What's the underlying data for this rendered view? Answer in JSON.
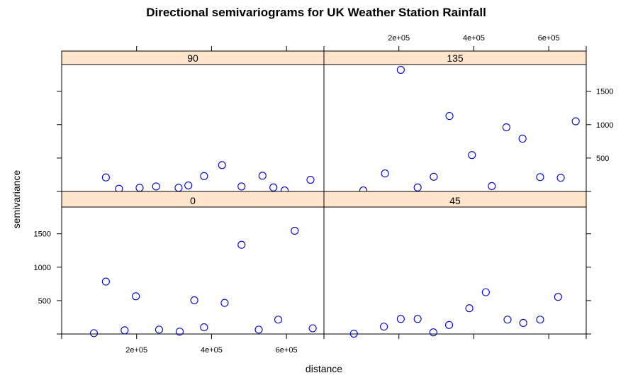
{
  "chart_data": {
    "type": "scatter",
    "title": "Directional semivariograms for UK Weather Station Rainfall",
    "xlabel": "distance",
    "ylabel": "semivariance",
    "xlim": [
      0,
      700000
    ],
    "ylim": [
      0,
      1900
    ],
    "x_ticks": [
      200000,
      400000,
      600000
    ],
    "x_tick_labels": [
      "2e+05",
      "4e+05",
      "6e+05"
    ],
    "y_ticks": [
      500,
      1000,
      1500
    ],
    "y_tick_labels": [
      "500",
      "1000",
      "1500"
    ],
    "point_color": "#0000CC",
    "strip_color": "#FFE5CC",
    "panels": [
      {
        "label": "0",
        "x": [
          86000,
          118000,
          168000,
          198000,
          260000,
          315000,
          354000,
          380000,
          435000,
          480000,
          526000,
          578000,
          622000,
          670000
        ],
        "y": [
          12,
          785,
          55,
          565,
          65,
          35,
          505,
          100,
          465,
          1335,
          65,
          215,
          1545,
          85
        ]
      },
      {
        "label": "45",
        "x": [
          80000,
          160000,
          205000,
          250000,
          292000,
          334000,
          388000,
          432000,
          490000,
          532000,
          577000,
          625000
        ],
        "y": [
          5,
          110,
          225,
          225,
          25,
          135,
          385,
          625,
          215,
          165,
          215,
          555
        ]
      },
      {
        "label": "90",
        "x": [
          118000,
          153000,
          208000,
          252000,
          312000,
          338000,
          380000,
          428000,
          480000,
          536000,
          565000,
          595000,
          664000
        ],
        "y": [
          210,
          40,
          55,
          75,
          55,
          90,
          230,
          395,
          75,
          235,
          60,
          15,
          175
        ]
      },
      {
        "label": "135",
        "x": [
          105000,
          163000,
          205000,
          250000,
          293000,
          335000,
          395000,
          448000,
          487000,
          530000,
          577000,
          632000,
          672000
        ],
        "y": [
          15,
          270,
          1820,
          60,
          220,
          1130,
          545,
          80,
          960,
          790,
          215,
          205,
          1050
        ]
      }
    ]
  }
}
